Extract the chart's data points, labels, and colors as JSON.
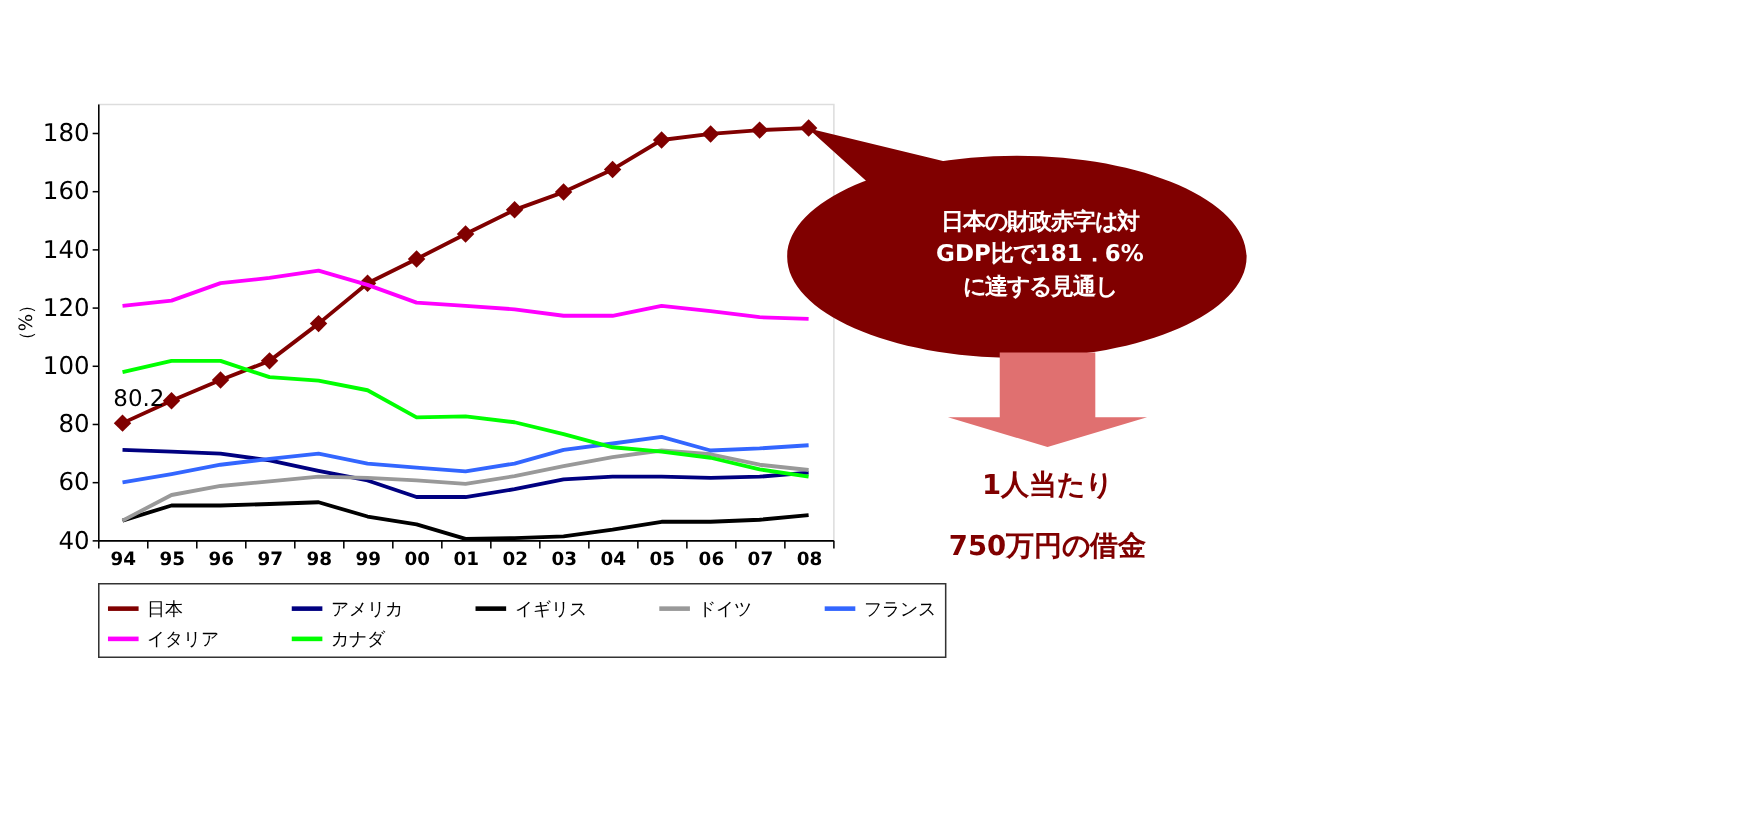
{
  "chart_data": {
    "type": "line",
    "ylabel": "（%）",
    "categories": [
      "94",
      "95",
      "96",
      "97",
      "98",
      "99",
      "00",
      "01",
      "02",
      "03",
      "04",
      "05",
      "06",
      "07",
      "08"
    ],
    "ylim": [
      40,
      190
    ],
    "yticks": [
      40,
      60,
      80,
      100,
      120,
      140,
      160,
      180
    ],
    "grid": false,
    "legend": "bottom",
    "series": [
      {
        "name": "日本",
        "color": "#800000",
        "marker": "diamond",
        "values": [
          80.2,
          87.9,
          95.0,
          101.6,
          114.4,
          128.3,
          136.6,
          145.2,
          153.5,
          159.6,
          167.4,
          177.5,
          179.6,
          180.9,
          181.6
        ]
      },
      {
        "name": "アメリカ",
        "color": "#000080",
        "values": [
          71.0,
          70.4,
          69.7,
          67.4,
          63.8,
          60.5,
          54.8,
          54.8,
          57.5,
          60.9,
          61.8,
          61.8,
          61.4,
          61.8,
          63.2
        ]
      },
      {
        "name": "イギリス",
        "color": "#000000",
        "values": [
          46.7,
          51.9,
          51.9,
          52.4,
          53.0,
          48.1,
          45.4,
          40.4,
          40.7,
          41.3,
          43.6,
          46.3,
          46.3,
          47.0,
          48.6
        ]
      },
      {
        "name": "ドイツ",
        "color": "#999999",
        "values": [
          46.7,
          55.5,
          58.6,
          60.2,
          61.8,
          61.4,
          60.5,
          59.3,
          62.0,
          65.4,
          68.5,
          70.8,
          69.5,
          65.9,
          64.1
        ]
      },
      {
        "name": "フランス",
        "color": "#3366ff",
        "values": [
          59.8,
          62.7,
          65.9,
          67.9,
          69.7,
          66.3,
          64.9,
          63.6,
          66.3,
          71.0,
          73.2,
          75.5,
          70.8,
          71.5,
          72.6
        ]
      },
      {
        "name": "イタリア",
        "color": "#ff00ff",
        "values": [
          120.5,
          122.3,
          128.3,
          130.1,
          132.6,
          127.7,
          121.6,
          120.5,
          119.3,
          117.1,
          117.1,
          120.5,
          118.7,
          116.6,
          116.0
        ]
      },
      {
        "name": "カナダ",
        "color": "#00ff00",
        "values": [
          97.7,
          101.6,
          101.6,
          96.0,
          94.8,
          91.5,
          82.2,
          82.5,
          80.5,
          76.4,
          71.9,
          70.4,
          68.3,
          64.3,
          61.8
        ]
      }
    ],
    "annotations": [
      {
        "text": "80.2",
        "x": "94",
        "y": 80.2
      },
      "日本の財政赤字は対\nGDP比で181．6%\nに達する見通し",
      "1人当たり",
      "750万円の借金"
    ]
  }
}
